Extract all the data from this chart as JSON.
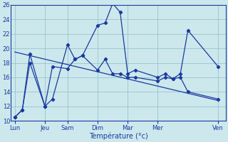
{
  "xlabel": "Température (°c)",
  "ylim": [
    10,
    26
  ],
  "yticks": [
    10,
    12,
    14,
    16,
    18,
    20,
    22,
    24,
    26
  ],
  "day_labels": [
    "Lun",
    "Jeu",
    "Sam",
    "Dim",
    "Mar",
    "Mer",
    "Ven"
  ],
  "day_positions": [
    0,
    4,
    7,
    11,
    15,
    19,
    27
  ],
  "xlim": [
    -0.5,
    28
  ],
  "background_color": "#cce8ed",
  "line_color": "#1a3a9e",
  "grid_color": "#99c4cc",
  "line1_x": [
    0,
    1,
    2,
    4,
    5,
    7,
    8,
    9,
    11,
    12,
    13,
    14,
    15,
    16,
    19,
    20,
    21,
    22,
    23,
    27
  ],
  "line1_y": [
    10.5,
    11.5,
    19.2,
    12.0,
    13.0,
    20.5,
    18.5,
    19.0,
    23.2,
    23.5,
    26.2,
    25.0,
    16.5,
    17.0,
    16.0,
    16.5,
    15.8,
    16.5,
    22.5,
    17.5
  ],
  "line2_x": [
    0,
    1,
    2,
    4,
    5,
    7,
    8,
    9,
    11,
    12,
    13,
    14,
    15,
    16,
    19,
    20,
    21,
    22,
    23,
    27
  ],
  "line2_y": [
    10.5,
    11.5,
    18.0,
    12.0,
    17.5,
    17.2,
    18.5,
    19.0,
    17.0,
    18.5,
    16.5,
    16.5,
    16.0,
    16.0,
    15.5,
    16.0,
    15.8,
    16.0,
    14.0,
    13.0
  ],
  "trend_x": [
    0,
    27
  ],
  "trend_y": [
    19.5,
    12.8
  ]
}
